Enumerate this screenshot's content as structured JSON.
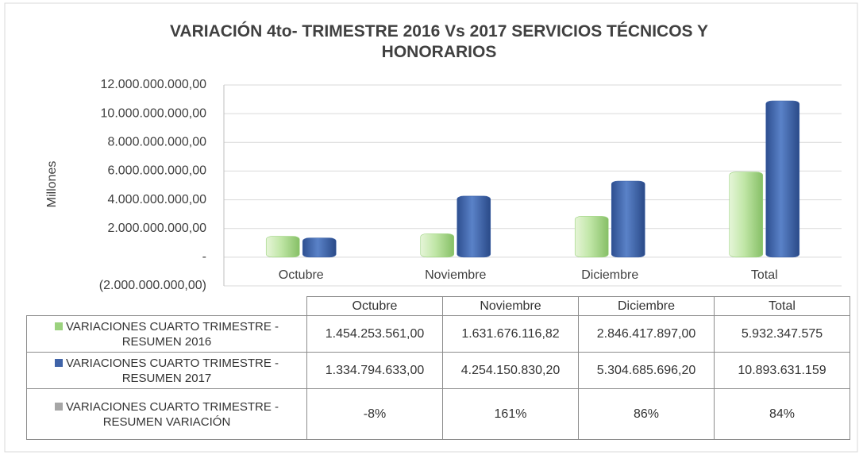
{
  "chart_data": {
    "type": "bar",
    "title": "VARIACIÓN 4to- TRIMESTRE 2016 Vs 2017 SERVICIOS TÉCNICOS Y HONORARIOS",
    "y_label": "Millones",
    "categories": [
      "Octubre",
      "Noviembre",
      "Diciembre",
      "Total"
    ],
    "series": [
      {
        "name": "VARIACIONES CUARTO TRIMESTRE - RESUMEN 2016",
        "color": "#9bd27e",
        "values": [
          1454253561.0,
          1631676116.82,
          2846417897.0,
          5932347575
        ],
        "value_labels": [
          "1.454.253.561,00",
          "1.631.676.116,82",
          "2.846.417.897,00",
          "5.932.347.575"
        ]
      },
      {
        "name": "VARIACIONES CUARTO TRIMESTRE - RESUMEN 2017",
        "color": "#3f63a8",
        "values": [
          1334794633.0,
          4254150830.2,
          5304685696.2,
          10893631159
        ],
        "value_labels": [
          "1.334.794.633,00",
          "4.254.150.830,20",
          "5.304.685.696,20",
          "10.893.631.159"
        ]
      },
      {
        "name": "VARIACIONES CUARTO TRIMESTRE - RESUMEN VARIACIÓN",
        "color": "#a6a6a6",
        "values": [
          -8,
          161,
          86,
          84
        ],
        "value_labels": [
          "-8%",
          "161%",
          "86%",
          "84%"
        ]
      }
    ],
    "ylim": [
      -2000000000,
      12000000000
    ],
    "yticks": [
      {
        "value": -2000000000,
        "label": "(2.000.000.000,00)"
      },
      {
        "value": 0,
        "label": "-"
      },
      {
        "value": 2000000000,
        "label": "2.000.000.000,00"
      },
      {
        "value": 4000000000,
        "label": "4.000.000.000,00"
      },
      {
        "value": 6000000000,
        "label": "6.000.000.000,00"
      },
      {
        "value": 8000000000,
        "label": "8.000.000.000,00"
      },
      {
        "value": 10000000000,
        "label": "10.000.000.000,00"
      },
      {
        "value": 12000000000,
        "label": "12.000.000.000,00"
      }
    ],
    "grid": true
  }
}
